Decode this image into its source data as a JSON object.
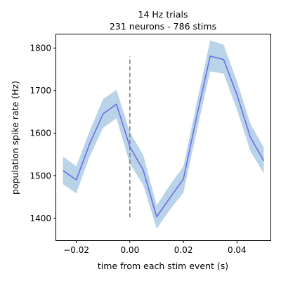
{
  "chart_data": {
    "type": "line",
    "title": "14 Hz trials",
    "subtitle": "231 neurons - 786 stims",
    "xlabel": "time from each stim event (s)",
    "ylabel": "population spike rate (Hz)",
    "xlim": [
      -0.0275,
      0.0525
    ],
    "ylim": [
      1348,
      1832
    ],
    "xticks": [
      -0.02,
      0.0,
      0.02,
      0.04
    ],
    "xtick_labels": [
      "−0.02",
      "0.00",
      "0.02",
      "0.04"
    ],
    "yticks": [
      1400,
      1500,
      1600,
      1700,
      1800
    ],
    "ytick_labels": [
      "1400",
      "1500",
      "1600",
      "1700",
      "1800"
    ],
    "grid": false,
    "series": [
      {
        "x": [
          -0.025,
          -0.02,
          -0.015,
          -0.01,
          -0.005,
          0.0,
          0.005,
          0.01,
          0.015,
          0.02,
          0.025,
          0.03,
          0.035,
          0.04,
          0.045,
          0.05
        ],
        "values": [
          1512,
          1490,
          1575,
          1645,
          1668,
          1568,
          1513,
          1403,
          1448,
          1492,
          1640,
          1781,
          1773,
          1690,
          1590,
          1535
        ],
        "lower": [
          1480,
          1458,
          1545,
          1612,
          1635,
          1528,
          1478,
          1375,
          1420,
          1460,
          1605,
          1745,
          1740,
          1655,
          1558,
          1505
        ],
        "upper": [
          1545,
          1522,
          1605,
          1680,
          1702,
          1602,
          1548,
          1430,
          1478,
          1522,
          1672,
          1818,
          1808,
          1722,
          1622,
          1566
        ]
      }
    ],
    "colors": {
      "line": "#6a6eea",
      "band": "#b9d3e9",
      "stim_marker": "#808080"
    },
    "annotations": [
      {
        "type": "vline",
        "x": 0.0,
        "ymin": 1402,
        "ymax": 1780,
        "style": "dashed"
      }
    ]
  }
}
